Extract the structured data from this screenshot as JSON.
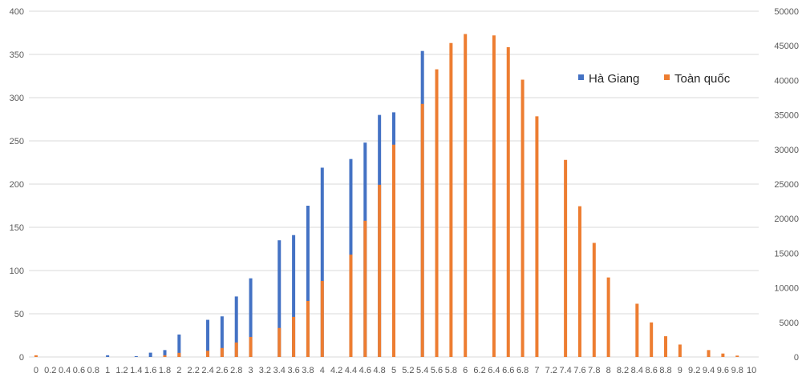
{
  "chart_data": {
    "type": "bar",
    "title": "",
    "xlabel": "",
    "ylabel": "",
    "categories": [
      "0",
      "0.2",
      "0.4",
      "0.6",
      "0.8",
      "1",
      "1.2",
      "1.4",
      "1.6",
      "1.8",
      "2",
      "2.2",
      "2.4",
      "2.6",
      "2.8",
      "3",
      "3.2",
      "3.4",
      "3.6",
      "3.8",
      "4",
      "4.2",
      "4.4",
      "4.6",
      "4.8",
      "5",
      "5.2",
      "5.4",
      "5.6",
      "5.8",
      "6",
      "6.2",
      "6.4",
      "6.6",
      "6.8",
      "7",
      "7.2",
      "7.4",
      "7.6",
      "7.8",
      "8",
      "8.2",
      "8.4",
      "8.6",
      "8.8",
      "9",
      "9.2",
      "9.4",
      "9.6",
      "9.8",
      "10"
    ],
    "series": [
      {
        "name": "Hà Giang",
        "axis": "left",
        "color": "#4472c4",
        "values": [
          0,
          0,
          0,
          0,
          0,
          2,
          0,
          1,
          5,
          8,
          26,
          0,
          43,
          47,
          70,
          91,
          0,
          135,
          141,
          175,
          219,
          0,
          229,
          248,
          280,
          283,
          0,
          354,
          0,
          0,
          0,
          0,
          0,
          0,
          0,
          0,
          0,
          0,
          0,
          0,
          0,
          0,
          0,
          0,
          0,
          0,
          0,
          0,
          0,
          0,
          0
        ]
      },
      {
        "name": "Toàn quốc",
        "axis": "right",
        "color": "#ed7d31",
        "values": [
          250,
          0,
          0,
          0,
          0,
          0,
          0,
          0,
          0,
          250,
          600,
          0,
          900,
          1300,
          2100,
          2900,
          0,
          4200,
          5800,
          8100,
          11000,
          0,
          14800,
          19700,
          24900,
          30700,
          0,
          36600,
          41600,
          45400,
          46700,
          0,
          46500,
          44800,
          40100,
          34800,
          0,
          28500,
          21800,
          16500,
          11500,
          0,
          7700,
          5000,
          3000,
          1800,
          0,
          1000,
          500,
          200,
          0
        ]
      }
    ],
    "y_left": {
      "ylim": [
        0,
        400
      ],
      "ticks": [
        0,
        50,
        100,
        150,
        200,
        250,
        300,
        350,
        400
      ]
    },
    "y_right": {
      "ylim": [
        0,
        50000
      ],
      "ticks": [
        0,
        5000,
        10000,
        15000,
        20000,
        25000,
        30000,
        35000,
        40000,
        45000,
        50000
      ]
    },
    "grid": true,
    "legend_placement": "top-right"
  }
}
